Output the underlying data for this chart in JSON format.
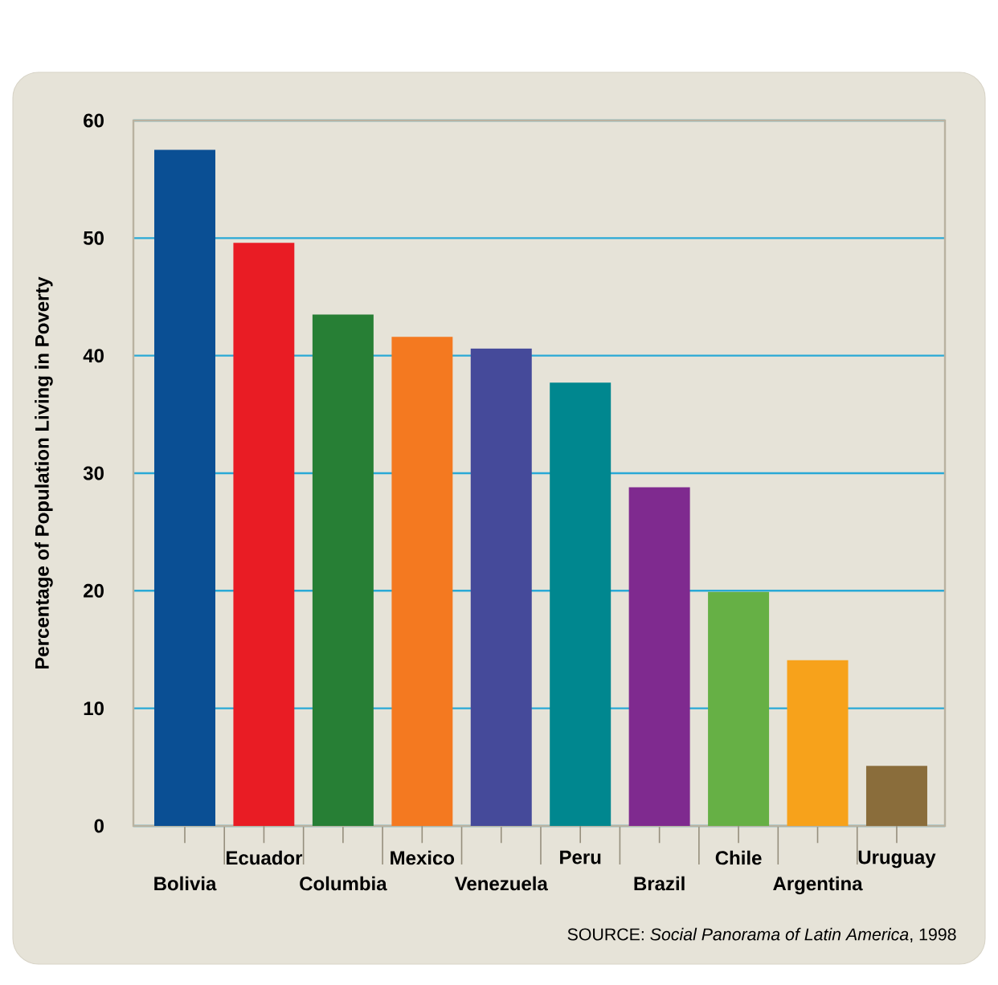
{
  "chart_data": {
    "type": "bar",
    "ylabel": "Percentage of Population Living in Poverty",
    "categories": [
      "Bolivia",
      "Ecuador",
      "Columbia",
      "Mexico",
      "Venezuela",
      "Peru",
      "Brazil",
      "Chile",
      "Argentina",
      "Uruguay"
    ],
    "values": [
      57.5,
      49.6,
      43.5,
      41.6,
      40.6,
      37.7,
      28.8,
      19.9,
      14.1,
      5.1
    ],
    "colors": [
      "#0a4f94",
      "#e91c24",
      "#277f35",
      "#f47920",
      "#454a9a",
      "#00878f",
      "#7f2a8f",
      "#66b045",
      "#f7a21b",
      "#8a6d3b"
    ],
    "ylim": [
      0,
      60
    ],
    "yticks": [
      0,
      10,
      20,
      30,
      40,
      50,
      60
    ],
    "grid": "y",
    "annotations": [
      "SOURCE: *Social Panorama of Latin America*, 1998"
    ]
  }
}
